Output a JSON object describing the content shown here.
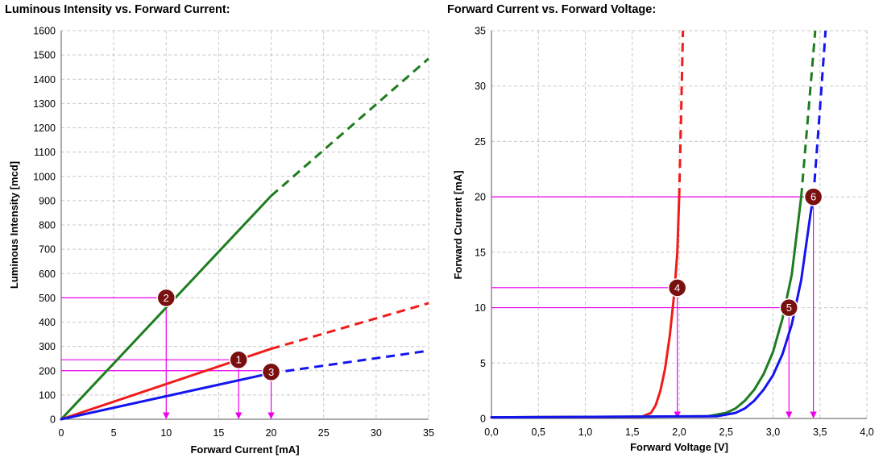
{
  "chart_data": [
    {
      "type": "line",
      "title": "Luminous Intensity vs. Forward Current:",
      "xlabel": "Forward Current [mA]",
      "ylabel": "Luminous Intensity [mcd]",
      "xlim": [
        0,
        35
      ],
      "ylim": [
        0,
        1600
      ],
      "xticks": [
        0,
        5,
        10,
        15,
        20,
        25,
        30,
        35
      ],
      "yticks": [
        0,
        100,
        200,
        300,
        400,
        500,
        600,
        700,
        800,
        900,
        1000,
        1100,
        1200,
        1300,
        1400,
        1500,
        1600
      ],
      "xtick_labels": [
        "0",
        "5",
        "10",
        "15",
        "20",
        "25",
        "30",
        "35"
      ],
      "ytick_labels": [
        "0",
        "100",
        "200",
        "300",
        "400",
        "500",
        "600",
        "700",
        "800",
        "900",
        "1000",
        "1100",
        "1200",
        "1300",
        "1400",
        "1500",
        "1600"
      ],
      "grid": true,
      "series": [
        {
          "color": "#1e7d1e",
          "solid": [
            [
              0,
              0
            ],
            [
              20,
              920
            ]
          ],
          "dashed": [
            [
              20,
              920
            ],
            [
              35,
              1485
            ]
          ]
        },
        {
          "color": "#f01b1b",
          "solid": [
            [
              0,
              0
            ],
            [
              20,
              290
            ]
          ],
          "dashed": [
            [
              20,
              290
            ],
            [
              35,
              478
            ]
          ]
        },
        {
          "color": "#1414f0",
          "solid": [
            [
              0,
              0
            ],
            [
              20,
              190
            ]
          ],
          "dashed": [
            [
              20,
              190
            ],
            [
              35,
              282
            ]
          ]
        }
      ],
      "guides": [
        {
          "x": 10,
          "y": 500
        },
        {
          "x": 16.9,
          "y": 245
        },
        {
          "x": 20,
          "y": 200
        }
      ],
      "markers": [
        {
          "label": "2",
          "x": 10,
          "y": 500
        },
        {
          "label": "1",
          "x": 16.9,
          "y": 245
        },
        {
          "label": "3",
          "x": 20,
          "y": 195
        }
      ]
    },
    {
      "type": "line",
      "title": "Forward Current vs. Forward Voltage:",
      "xlabel": "Forward Voltage [V]",
      "ylabel": "Forward Current [mA]",
      "xlim": [
        0,
        4
      ],
      "ylim": [
        0,
        35
      ],
      "xticks": [
        0,
        0.5,
        1,
        1.5,
        2,
        2.5,
        3,
        3.5,
        4
      ],
      "yticks": [
        0,
        5,
        10,
        15,
        20,
        25,
        30,
        35
      ],
      "xtick_labels": [
        "0,0",
        "0,5",
        "1,0",
        "1,5",
        "2,0",
        "2,5",
        "3,0",
        "3,5",
        "4,0"
      ],
      "ytick_labels": [
        "0",
        "5",
        "10",
        "15",
        "20",
        "25",
        "30",
        "35"
      ],
      "grid": true,
      "series": [
        {
          "color": "#f01b1b",
          "solid": [
            [
              0,
              0.1
            ],
            [
              1.6,
              0.15
            ],
            [
              1.7,
              0.5
            ],
            [
              1.75,
              1.2
            ],
            [
              1.8,
              2.5
            ],
            [
              1.85,
              4.5
            ],
            [
              1.9,
              7.5
            ],
            [
              1.95,
              11.5
            ],
            [
              1.98,
              15
            ],
            [
              2.0,
              20
            ]
          ],
          "dashed": [
            [
              2.0,
              20
            ],
            [
              2.02,
              27
            ],
            [
              2.04,
              35
            ]
          ]
        },
        {
          "color": "#1e7d1e",
          "solid": [
            [
              0,
              0.1
            ],
            [
              2.3,
              0.2
            ],
            [
              2.5,
              0.5
            ],
            [
              2.6,
              0.9
            ],
            [
              2.7,
              1.6
            ],
            [
              2.8,
              2.6
            ],
            [
              2.9,
              4.0
            ],
            [
              3.0,
              6.0
            ],
            [
              3.1,
              9.0
            ],
            [
              3.2,
              13.0
            ],
            [
              3.3,
              20.0
            ]
          ],
          "dashed": [
            [
              3.3,
              20
            ],
            [
              3.38,
              28
            ],
            [
              3.45,
              35
            ]
          ]
        },
        {
          "color": "#1414f0",
          "solid": [
            [
              0,
              0.1
            ],
            [
              2.4,
              0.2
            ],
            [
              2.6,
              0.5
            ],
            [
              2.7,
              0.9
            ],
            [
              2.8,
              1.6
            ],
            [
              2.9,
              2.6
            ],
            [
              3.0,
              3.9
            ],
            [
              3.1,
              5.8
            ],
            [
              3.2,
              8.5
            ],
            [
              3.3,
              12.5
            ],
            [
              3.4,
              18.5
            ],
            [
              3.43,
              20
            ]
          ],
          "dashed": [
            [
              3.43,
              20
            ],
            [
              3.5,
              28
            ],
            [
              3.56,
              35
            ]
          ]
        }
      ],
      "guides": [
        {
          "x": 1.98,
          "y": 11.8
        },
        {
          "x": 3.17,
          "y": 10
        },
        {
          "x": 3.43,
          "y": 20
        }
      ],
      "markers": [
        {
          "label": "4",
          "x": 1.98,
          "y": 11.8
        },
        {
          "label": "5",
          "x": 3.17,
          "y": 10
        },
        {
          "label": "6",
          "x": 3.43,
          "y": 20
        }
      ]
    }
  ]
}
